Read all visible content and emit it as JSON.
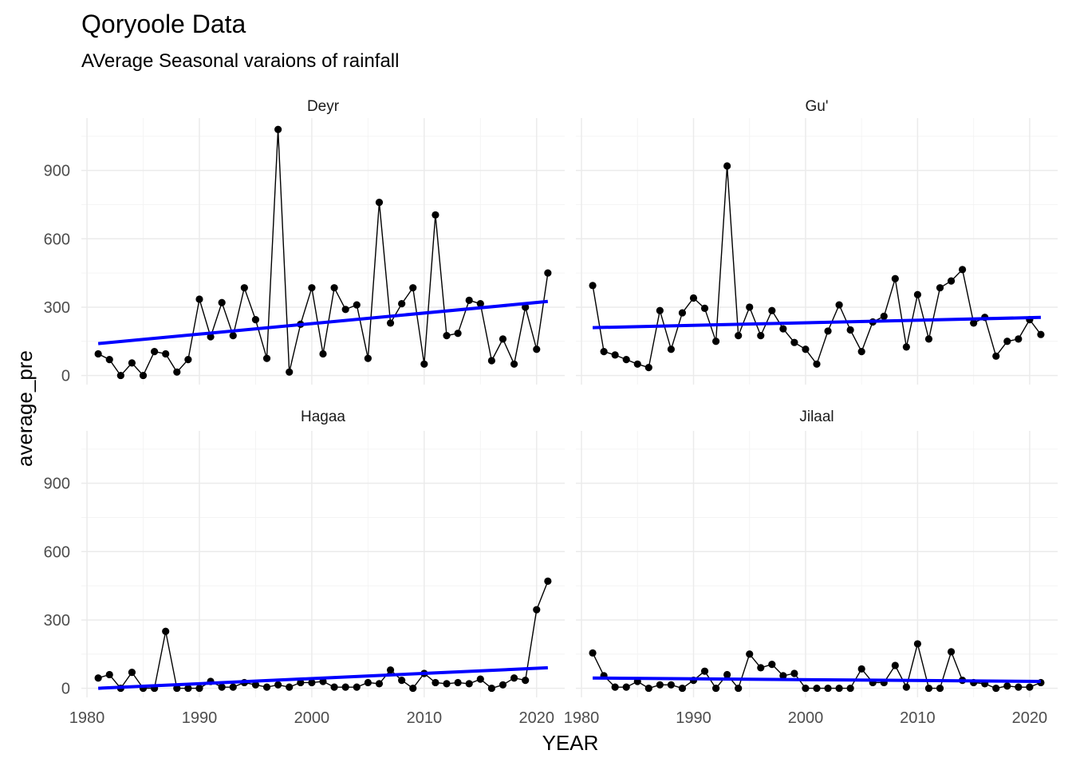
{
  "chart_data": {
    "type": "line",
    "title": "Qoryoole Data",
    "subtitle": "AVerage Seasonal varaions of rainfall",
    "xlabel": "YEAR",
    "ylabel": "average_pre",
    "xlim": [
      1979.5,
      2022.5
    ],
    "ylim": [
      -40,
      1130
    ],
    "x_ticks": [
      1980,
      1990,
      2000,
      2010,
      2020
    ],
    "y_ticks": [
      0,
      300,
      600,
      900
    ],
    "grid": true,
    "colors": {
      "points": "#000000",
      "trend": "#0000ff"
    },
    "x": [
      1981,
      1982,
      1983,
      1984,
      1985,
      1986,
      1987,
      1988,
      1989,
      1990,
      1991,
      1992,
      1993,
      1994,
      1995,
      1996,
      1997,
      1998,
      1999,
      2000,
      2001,
      2002,
      2003,
      2004,
      2005,
      2006,
      2007,
      2008,
      2009,
      2010,
      2011,
      2012,
      2013,
      2014,
      2015,
      2016,
      2017,
      2018,
      2019,
      2020,
      2021
    ],
    "panels": [
      {
        "name": "Deyr",
        "values": [
          95,
          70,
          0,
          55,
          0,
          105,
          95,
          15,
          70,
          335,
          170,
          320,
          175,
          385,
          245,
          75,
          1080,
          15,
          225,
          385,
          95,
          385,
          290,
          310,
          75,
          760,
          230,
          315,
          385,
          50,
          705,
          175,
          185,
          330,
          315,
          65,
          160,
          50,
          300,
          115,
          450
        ],
        "trend": [
          140,
          325
        ]
      },
      {
        "name": "Gu'",
        "values": [
          395,
          105,
          90,
          70,
          50,
          35,
          285,
          115,
          275,
          340,
          295,
          150,
          920,
          175,
          300,
          175,
          285,
          205,
          145,
          115,
          50,
          195,
          310,
          200,
          105,
          235,
          260,
          425,
          125,
          355,
          160,
          385,
          415,
          465,
          230,
          255,
          85,
          150,
          160,
          245,
          180
        ],
        "trend": [
          210,
          255
        ]
      },
      {
        "name": "Hagaa",
        "values": [
          45,
          60,
          0,
          70,
          0,
          0,
          250,
          0,
          0,
          0,
          30,
          5,
          5,
          25,
          15,
          5,
          15,
          5,
          25,
          25,
          30,
          5,
          5,
          5,
          25,
          20,
          80,
          35,
          0,
          65,
          25,
          20,
          25,
          20,
          40,
          0,
          15,
          45,
          35,
          345,
          470
        ],
        "trend": [
          0,
          90
        ]
      },
      {
        "name": "Jilaal",
        "values": [
          155,
          55,
          5,
          5,
          30,
          0,
          15,
          15,
          0,
          35,
          75,
          0,
          60,
          0,
          150,
          90,
          105,
          55,
          65,
          0,
          0,
          0,
          0,
          0,
          85,
          25,
          25,
          100,
          5,
          195,
          0,
          0,
          160,
          35,
          25,
          20,
          0,
          10,
          5,
          5,
          25
        ],
        "trend": [
          45,
          30
        ]
      }
    ]
  }
}
